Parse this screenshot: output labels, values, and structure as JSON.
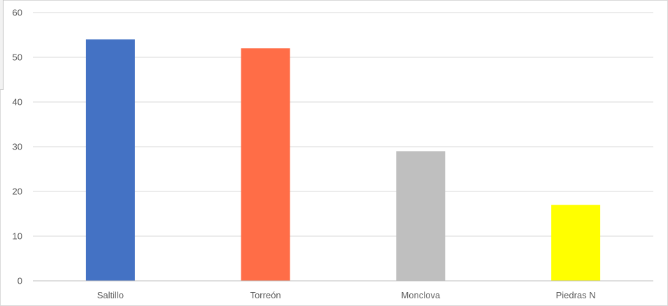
{
  "chart_data": {
    "type": "bar",
    "categories": [
      "Saltillo",
      "Torreón",
      "Monclova",
      "Piedras N"
    ],
    "values": [
      54,
      52,
      29,
      17
    ],
    "colors": [
      "#4472c4",
      "#ff6d47",
      "#bfbfbf",
      "#ffff00"
    ],
    "ylim": [
      0,
      60
    ],
    "yticks": [
      "0",
      "10",
      "20",
      "30",
      "40",
      "50",
      "60"
    ],
    "grid": true,
    "title": "",
    "xlabel": "",
    "ylabel": ""
  }
}
